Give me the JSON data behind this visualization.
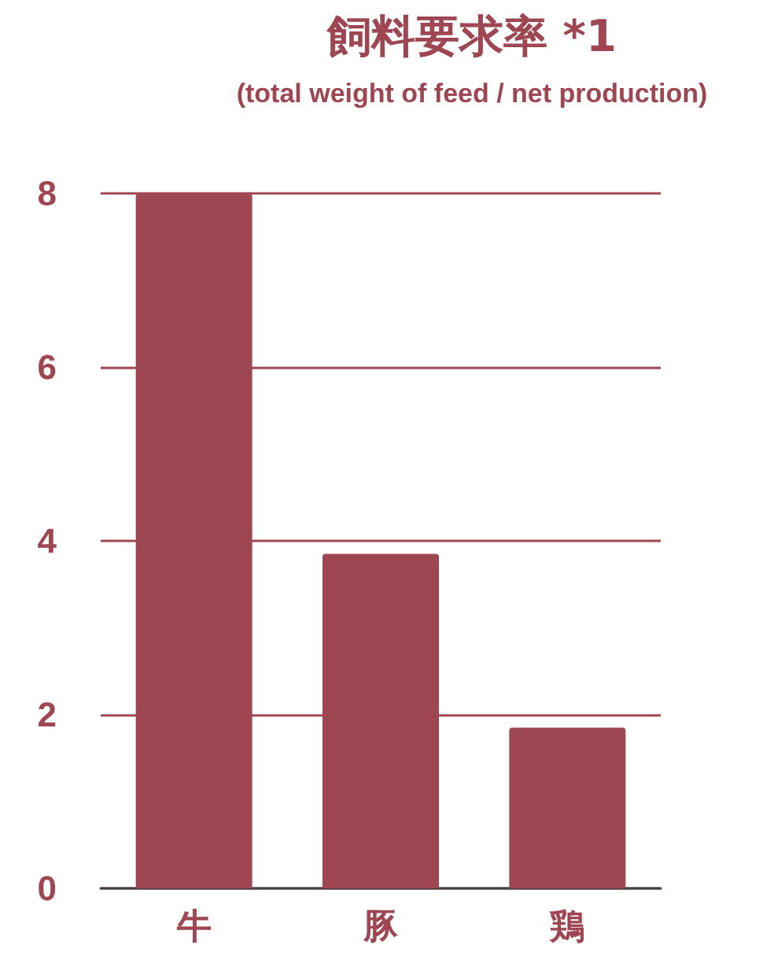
{
  "chart_data": {
    "type": "bar",
    "title": "飼料要求率 *1",
    "subtitle": "(total weight of feed / net production)",
    "categories": [
      "牛",
      "豚",
      "鶏"
    ],
    "values": [
      8,
      3.85,
      1.85
    ],
    "color": "#9e4652",
    "ylim": [
      0,
      8
    ],
    "yticks": [
      0,
      2,
      4,
      6,
      8
    ],
    "grid": "y"
  }
}
